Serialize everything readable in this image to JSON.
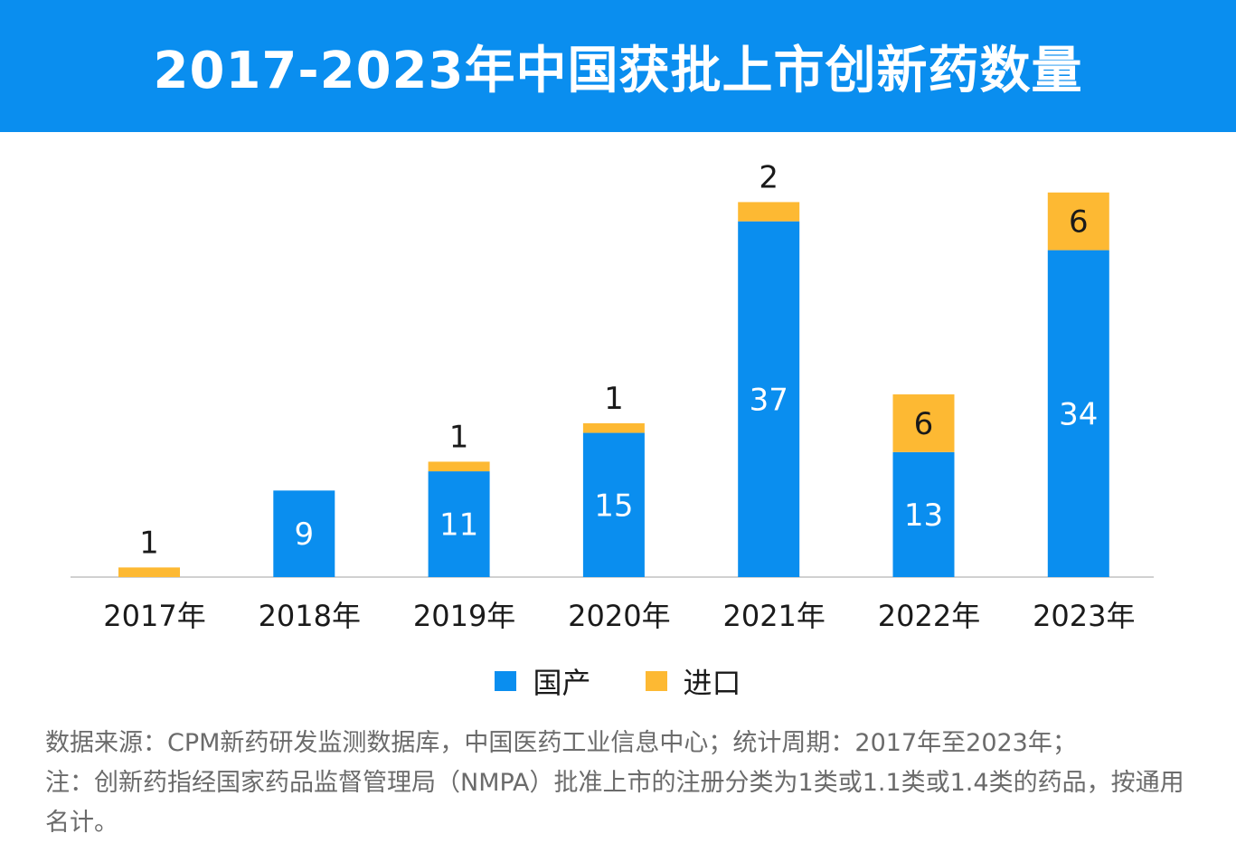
{
  "title": "2017-2023年中国获批上市创新药数量",
  "colors": {
    "banner": "#0a8eef",
    "domestic": "#0a8eef",
    "imported": "#fdb933"
  },
  "legend": {
    "domestic": "国产",
    "imported": "进口"
  },
  "footnote": {
    "line1": "数据来源：CPM新药研发监测数据库，中国医药工业信息中心；统计周期：2017年至2023年；",
    "line2": "注：创新药指经国家药品监督管理局（NMPA）批准上市的注册分类为1类或1.1类或1.4类的药品，按通用名计。"
  },
  "chart_data": {
    "type": "bar",
    "stacked": true,
    "categories": [
      "2017年",
      "2018年",
      "2019年",
      "2020年",
      "2021年",
      "2022年",
      "2023年"
    ],
    "series": [
      {
        "name": "国产",
        "values": [
          0,
          9,
          11,
          15,
          37,
          13,
          34
        ],
        "labels": [
          "",
          "9",
          "11",
          "15",
          "37",
          "13",
          "34"
        ]
      },
      {
        "name": "进口",
        "values": [
          1,
          0,
          1,
          1,
          2,
          6,
          6
        ],
        "labels": [
          "1",
          "",
          "1",
          "1",
          "2",
          "6",
          "6"
        ]
      }
    ],
    "ylim": [
      0,
      41
    ],
    "grid": false,
    "legend_position": "bottom"
  }
}
